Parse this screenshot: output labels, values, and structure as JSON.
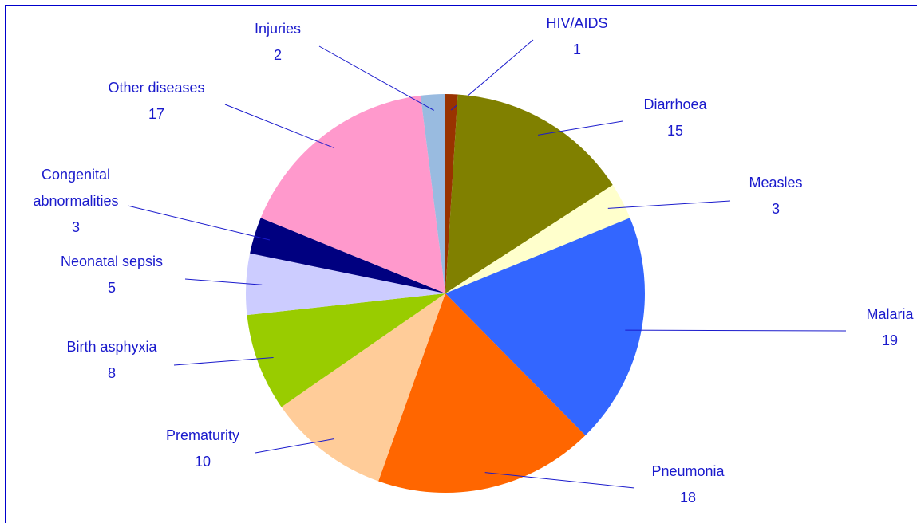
{
  "chart_data": {
    "type": "pie",
    "categories": [
      "HIV/AIDS",
      "Diarrhoea",
      "Measles",
      "Malaria",
      "Pneumonia",
      "Prematurity",
      "Birth asphyxia",
      "Neonatal sepsis",
      "Congenital abnormalities",
      "Other diseases",
      "Injuries"
    ],
    "values": [
      1,
      15,
      3,
      19,
      18,
      10,
      8,
      5,
      3,
      17,
      2
    ],
    "colors": [
      "#993300",
      "#808000",
      "#ffffcc",
      "#3366ff",
      "#ff6600",
      "#ffcc99",
      "#99cc00",
      "#ccccff",
      "#000080",
      "#ff99cc",
      "#99bbe0"
    ]
  }
}
